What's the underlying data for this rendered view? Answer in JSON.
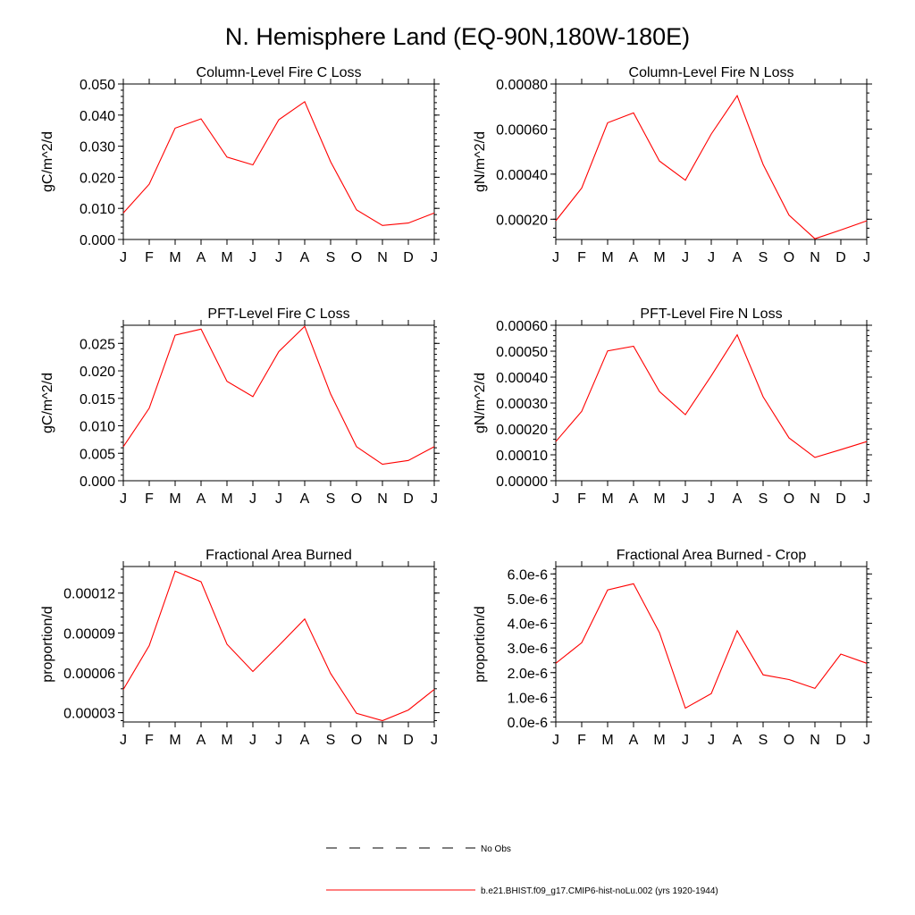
{
  "figure": {
    "title": "N. Hemisphere Land (EQ-90N,180W-180E)"
  },
  "legend": {
    "items": [
      {
        "label": "No Obs",
        "style": "dashed",
        "color": "#000000"
      },
      {
        "label": "b.e21.BHIST.f09_g17.CMIP6-hist-noLu.002 (yrs 1920-1944)",
        "style": "solid",
        "color": "#ff0000"
      }
    ]
  },
  "colors": {
    "series": "#ff0000",
    "axes": "#000000"
  },
  "chart_data": [
    {
      "type": "line",
      "title": "Column-Level Fire C Loss",
      "xlabel": "",
      "ylabel": "gC/m^2/d",
      "categories": [
        "J",
        "F",
        "M",
        "A",
        "M",
        "J",
        "J",
        "A",
        "S",
        "O",
        "N",
        "D",
        "J"
      ],
      "ylim": [
        0,
        0.05
      ],
      "yticks": [
        0.0,
        0.01,
        0.02,
        0.03,
        0.04,
        0.05
      ],
      "ytick_labels": [
        "0.000",
        "0.010",
        "0.020",
        "0.030",
        "0.040",
        "0.050"
      ],
      "series": [
        {
          "values": [
            0.0085,
            0.0178,
            0.0358,
            0.0388,
            0.0265,
            0.024,
            0.0385,
            0.0443,
            0.025,
            0.0095,
            0.0045,
            0.0053,
            0.0085
          ]
        }
      ]
    },
    {
      "type": "line",
      "title": "Column-Level Fire N Loss",
      "xlabel": "",
      "ylabel": "gN/m^2/d",
      "categories": [
        "J",
        "F",
        "M",
        "A",
        "M",
        "J",
        "J",
        "A",
        "S",
        "O",
        "N",
        "D",
        "J"
      ],
      "ylim": [
        0.00011,
        0.0008
      ],
      "yticks": [
        0.0002,
        0.0004,
        0.0006,
        0.0008
      ],
      "ytick_labels": [
        "0.00020",
        "0.00040",
        "0.00060",
        "0.00080"
      ],
      "series": [
        {
          "values": [
            0.000193,
            0.000338,
            0.000628,
            0.000672,
            0.000458,
            0.000373,
            0.000578,
            0.000748,
            0.000443,
            0.000218,
            0.000113,
            0.000152,
            0.000193
          ]
        }
      ]
    },
    {
      "type": "line",
      "title": "PFT-Level Fire C Loss",
      "xlabel": "",
      "ylabel": "gC/m^2/d",
      "categories": [
        "J",
        "F",
        "M",
        "A",
        "M",
        "J",
        "J",
        "A",
        "S",
        "O",
        "N",
        "D",
        "J"
      ],
      "ylim": [
        0,
        0.0283
      ],
      "yticks": [
        0.0,
        0.005,
        0.01,
        0.015,
        0.02,
        0.025
      ],
      "ytick_labels": [
        "0.000",
        "0.005",
        "0.010",
        "0.015",
        "0.020",
        "0.025"
      ],
      "series": [
        {
          "values": [
            0.0062,
            0.0132,
            0.0265,
            0.0276,
            0.0181,
            0.0153,
            0.0235,
            0.0281,
            0.0158,
            0.0062,
            0.003,
            0.0037,
            0.0062
          ]
        }
      ]
    },
    {
      "type": "line",
      "title": "PFT-Level Fire N Loss",
      "xlabel": "",
      "ylabel": "gN/m^2/d",
      "categories": [
        "J",
        "F",
        "M",
        "A",
        "M",
        "J",
        "J",
        "A",
        "S",
        "O",
        "N",
        "D",
        "J"
      ],
      "ylim": [
        0,
        0.0006
      ],
      "yticks": [
        0.0,
        0.0001,
        0.0002,
        0.0003,
        0.0004,
        0.0005,
        0.0006
      ],
      "ytick_labels": [
        "0.00000",
        "0.00010",
        "0.00020",
        "0.00030",
        "0.00040",
        "0.00050",
        "0.00060"
      ],
      "series": [
        {
          "values": [
            0.000151,
            0.000268,
            0.000501,
            0.000519,
            0.000344,
            0.000255,
            0.000405,
            0.000563,
            0.000324,
            0.000165,
            9e-05,
            0.00012,
            0.000151
          ]
        }
      ]
    },
    {
      "type": "line",
      "title": "Fractional Area Burned",
      "xlabel": "",
      "ylabel": "proportion/d",
      "categories": [
        "J",
        "F",
        "M",
        "A",
        "M",
        "J",
        "J",
        "A",
        "S",
        "O",
        "N",
        "D",
        "J"
      ],
      "ylim": [
        2.3e-05,
        0.00014
      ],
      "yticks": [
        3e-05,
        6e-05,
        9e-05,
        0.00012
      ],
      "ytick_labels": [
        "0.00003",
        "0.00006",
        "0.00009",
        "0.00012"
      ],
      "series": [
        {
          "values": [
            4.75e-05,
            8.05e-05,
            0.0001365,
            0.0001285,
            8.15e-05,
            6.1e-05,
            8.05e-05,
            0.0001005,
            5.95e-05,
            2.95e-05,
            2.4e-05,
            3.2e-05,
            4.75e-05
          ]
        }
      ]
    },
    {
      "type": "line",
      "title": "Fractional Area Burned - Crop",
      "xlabel": "",
      "ylabel": "proportion/d",
      "categories": [
        "J",
        "F",
        "M",
        "A",
        "M",
        "J",
        "J",
        "A",
        "S",
        "O",
        "N",
        "D",
        "J"
      ],
      "ylim": [
        0.0,
        6.3e-06
      ],
      "yticks": [
        0.0,
        1e-06,
        2e-06,
        3e-06,
        4e-06,
        5e-06,
        6e-06
      ],
      "ytick_labels": [
        "0.0e-6",
        "1.0e-6",
        "2.0e-6",
        "3.0e-6",
        "4.0e-6",
        "5.0e-6",
        "6.0e-6"
      ],
      "series": [
        {
          "values": [
            2.38e-06,
            3.21e-06,
            5.35e-06,
            5.6e-06,
            3.62e-06,
            5.6e-07,
            1.15e-06,
            3.7e-06,
            1.91e-06,
            1.72e-06,
            1.36e-06,
            2.75e-06,
            2.38e-06
          ]
        }
      ]
    }
  ]
}
